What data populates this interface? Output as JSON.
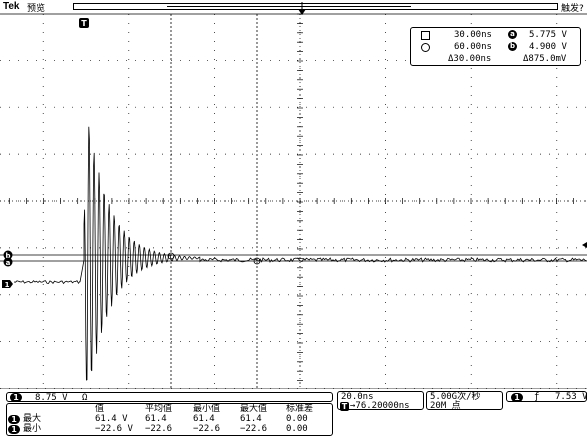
{
  "header": {
    "brand": "Tek",
    "mode": "预览",
    "trigger_status": "触发?"
  },
  "markers": {
    "trigger_position": "T",
    "cursor_a": "a",
    "cursor_b": "b",
    "ch1_ground": "1"
  },
  "cursor_readout": {
    "cursor1_time": "30.00ns",
    "cursor2_time": "60.00ns",
    "delta_time": "Δ30.00ns",
    "cursor_a_label": "a",
    "cursor_b_label": "b",
    "cursor_a_value": "5.775 V",
    "cursor_b_value": "4.900 V",
    "delta_value": "Δ875.0mV"
  },
  "channel": {
    "badge": "1",
    "scale": "8.75 V",
    "coupling_symbol": "Ω"
  },
  "measurements": {
    "headers": [
      "值",
      "平均值",
      "最小值",
      "最大值",
      "标准差"
    ],
    "rows": [
      {
        "badge": "1",
        "label": "最大",
        "values": [
          "61.4 V",
          "61.4",
          "61.4",
          "61.4",
          "0.00"
        ]
      },
      {
        "badge": "1",
        "label": "最小",
        "values": [
          "−22.6 V",
          "−22.6",
          "−22.6",
          "−22.6",
          "0.00"
        ]
      }
    ]
  },
  "timebase": {
    "scale": "20.0ns",
    "trigger_marker": "T",
    "position": "→76.20000ns"
  },
  "acquisition": {
    "rate": "5.00G次/秒",
    "record_length": "20M 点"
  },
  "trigger": {
    "badge": "1",
    "slope_symbol": "ƒ",
    "level": "7.53 V"
  },
  "colors": {
    "background": "#ffffff",
    "trace": "#000000",
    "grid": "#000000"
  }
}
